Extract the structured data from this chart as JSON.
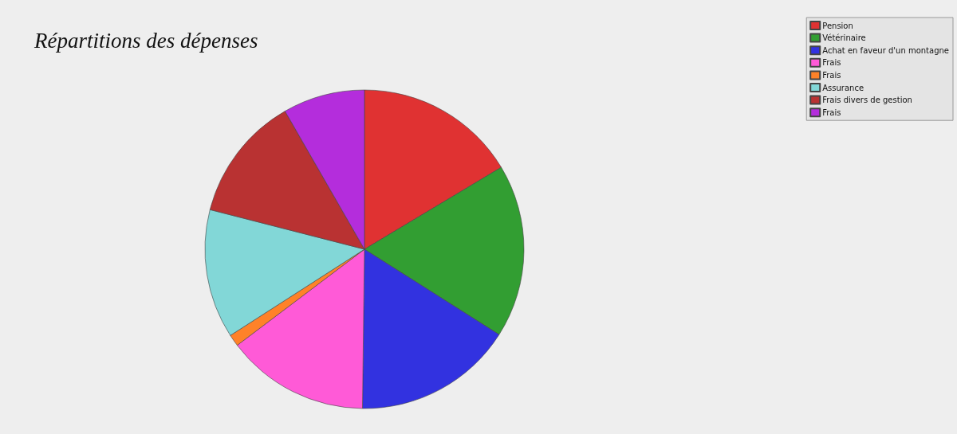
{
  "chart_data": {
    "type": "pie",
    "title": "Répartitions des dépenses",
    "categories": [
      "Pension",
      "Vétérinaire",
      "Achat en faveur d'un montagne",
      "Frais",
      "Frais",
      "Assurance",
      "Frais divers de gestion",
      "Frais"
    ],
    "values": [
      16.4,
      17.6,
      16.2,
      14.5,
      1.2,
      13.1,
      12.7,
      8.3
    ],
    "colors": [
      "#e03232",
      "#329e32",
      "#3232e0",
      "#ff5ad7",
      "#ff8228",
      "#82d7d7",
      "#b93232",
      "#b42ddc"
    ],
    "legend": "top right"
  }
}
